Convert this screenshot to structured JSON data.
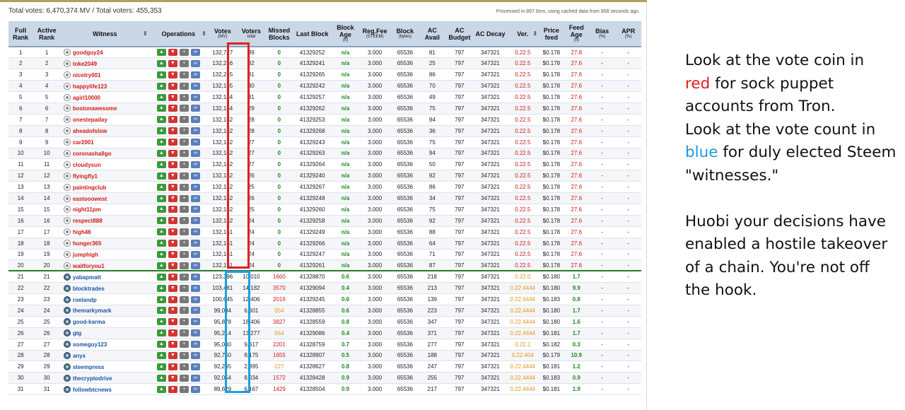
{
  "summary": "Total votes: 6,470,374 MV / Total voters: 455,353",
  "processed": "Processed in 897.6ms, using cached data from 858 seconds ago.",
  "headers": {
    "full_rank": "Full Rank",
    "active_rank": "Active Rank",
    "witness": "Witness",
    "operations": "Operations",
    "votes": "Votes",
    "votes_sub": "(MV)",
    "voters": "Voters",
    "voters_sub": "total",
    "missed": "Missed Blocks",
    "last_block": "Last Block",
    "block_age": "Block Age",
    "block_age_sub": "(h)",
    "reg_fee": "Reg.Fee",
    "reg_fee_sub": "(STEEM)",
    "block": "Block",
    "block_sub": "(bytes)",
    "ac_avail": "AC Avail",
    "ac_budget": "AC Budget",
    "ac_decay": "AC Decay",
    "ver": "Ver.",
    "price_feed": "Price feed",
    "feed_age": "Feed Age",
    "feed_age_sub": "(h)",
    "bias": "Bias",
    "bias_sub": "(%)",
    "apr": "APR",
    "apr_sub": "(%)"
  },
  "icons": {
    "upvote": "thumbs-up-icon",
    "downvote": "thumbs-down-icon",
    "proxy": "add-user-icon",
    "link": "link-icon",
    "sort": "sort-arrows-icon"
  },
  "colors": {
    "header_bg": "#c9d7e7",
    "sock_puppet": "#d11919",
    "elected": "#1a55a8",
    "red_box": "#e02020",
    "blue_box": "#1aa0e0",
    "note_red": "#e01b1b",
    "note_blue": "#1a9be0"
  },
  "rows": [
    {
      "full": "1",
      "active": "1",
      "witness": "goodguy24",
      "votes": "132,727",
      "voters": "39",
      "missed": "0",
      "last": "41329252",
      "age": "n/a",
      "fee": "3.000",
      "block": "65536",
      "avail": "81",
      "budget": "797",
      "decay": "347321",
      "ver": "0.22.5",
      "price": "$0.178",
      "feed_age": "27.8",
      "bias": "-",
      "apr": "-"
    },
    {
      "full": "2",
      "active": "2",
      "witness": "toke2049",
      "votes": "132,216",
      "voters": "32",
      "missed": "0",
      "last": "41329241",
      "age": "n/a",
      "fee": "3.000",
      "block": "65536",
      "avail": "25",
      "budget": "797",
      "decay": "347321",
      "ver": "0.22.5",
      "price": "$0.178",
      "feed_age": "27.6",
      "bias": "-",
      "apr": "-"
    },
    {
      "full": "3",
      "active": "3",
      "witness": "nicetry001",
      "votes": "132,215",
      "voters": "31",
      "missed": "0",
      "last": "41329265",
      "age": "n/a",
      "fee": "3.000",
      "block": "65536",
      "avail": "86",
      "budget": "797",
      "decay": "347321",
      "ver": "0.22.5",
      "price": "$0.178",
      "feed_age": "27.6",
      "bias": "-",
      "apr": "-"
    },
    {
      "full": "4",
      "active": "4",
      "witness": "happylife123",
      "votes": "132,155",
      "voters": "30",
      "missed": "0",
      "last": "41329242",
      "age": "n/a",
      "fee": "3.000",
      "block": "65536",
      "avail": "70",
      "budget": "797",
      "decay": "347321",
      "ver": "0.22.5",
      "price": "$0.178",
      "feed_age": "27.6",
      "bias": "-",
      "apr": "-"
    },
    {
      "full": "5",
      "active": "5",
      "witness": "agirl10000",
      "votes": "132,154",
      "voters": "31",
      "missed": "0",
      "last": "41329257",
      "age": "n/a",
      "fee": "3.000",
      "block": "65536",
      "avail": "49",
      "budget": "797",
      "decay": "347321",
      "ver": "0.22.5",
      "price": "$0.178",
      "feed_age": "27.6",
      "bias": "-",
      "apr": "-"
    },
    {
      "full": "6",
      "active": "6",
      "witness": "bostonawesome",
      "votes": "132,154",
      "voters": "29",
      "missed": "0",
      "last": "41329262",
      "age": "n/a",
      "fee": "3.000",
      "block": "65536",
      "avail": "75",
      "budget": "797",
      "decay": "347321",
      "ver": "0.22.5",
      "price": "$0.178",
      "feed_age": "27.6",
      "bias": "-",
      "apr": "-"
    },
    {
      "full": "7",
      "active": "7",
      "witness": "onestepaday",
      "votes": "132,152",
      "voters": "28",
      "missed": "0",
      "last": "41329253",
      "age": "n/a",
      "fee": "3.000",
      "block": "65536",
      "avail": "94",
      "budget": "797",
      "decay": "347321",
      "ver": "0.22.5",
      "price": "$0.178",
      "feed_age": "27.6",
      "bias": "-",
      "apr": "-"
    },
    {
      "full": "8",
      "active": "8",
      "witness": "aheadofslow",
      "votes": "132,152",
      "voters": "28",
      "missed": "0",
      "last": "41329268",
      "age": "n/a",
      "fee": "3.000",
      "block": "65536",
      "avail": "36",
      "budget": "797",
      "decay": "347321",
      "ver": "0.22.5",
      "price": "$0.178",
      "feed_age": "27.6",
      "bias": "-",
      "apr": "-"
    },
    {
      "full": "9",
      "active": "9",
      "witness": "car2001",
      "votes": "132,152",
      "voters": "27",
      "missed": "0",
      "last": "41329243",
      "age": "n/a",
      "fee": "3.000",
      "block": "65536",
      "avail": "75",
      "budget": "797",
      "decay": "347321",
      "ver": "0.22.5",
      "price": "$0.178",
      "feed_age": "27.6",
      "bias": "-",
      "apr": "-"
    },
    {
      "full": "10",
      "active": "10",
      "witness": "coronashallgo",
      "votes": "132,152",
      "voters": "27",
      "missed": "0",
      "last": "41329263",
      "age": "n/a",
      "fee": "3.000",
      "block": "65536",
      "avail": "94",
      "budget": "797",
      "decay": "347321",
      "ver": "0.22.5",
      "price": "$0.178",
      "feed_age": "27.6",
      "bias": "-",
      "apr": "-"
    },
    {
      "full": "11",
      "active": "11",
      "witness": "cloudysun",
      "votes": "132,152",
      "voters": "27",
      "missed": "0",
      "last": "41329264",
      "age": "n/a",
      "fee": "3.000",
      "block": "65536",
      "avail": "50",
      "budget": "797",
      "decay": "347321",
      "ver": "0.22.5",
      "price": "$0.178",
      "feed_age": "27.6",
      "bias": "-",
      "apr": "-"
    },
    {
      "full": "12",
      "active": "12",
      "witness": "flyingfly1",
      "votes": "132,152",
      "voters": "26",
      "missed": "0",
      "last": "41329240",
      "age": "n/a",
      "fee": "3.000",
      "block": "65536",
      "avail": "92",
      "budget": "797",
      "decay": "347321",
      "ver": "0.22.5",
      "price": "$0.178",
      "feed_age": "27.6",
      "bias": "-",
      "apr": "-"
    },
    {
      "full": "13",
      "active": "13",
      "witness": "paintingclub",
      "votes": "132,152",
      "voters": "25",
      "missed": "0",
      "last": "41329267",
      "age": "n/a",
      "fee": "3.000",
      "block": "65536",
      "avail": "86",
      "budget": "797",
      "decay": "347321",
      "ver": "0.22.5",
      "price": "$0.178",
      "feed_age": "27.6",
      "bias": "-",
      "apr": "-"
    },
    {
      "full": "14",
      "active": "14",
      "witness": "eastooowest",
      "votes": "132,152",
      "voters": "26",
      "missed": "0",
      "last": "41329248",
      "age": "n/a",
      "fee": "3.000",
      "block": "65536",
      "avail": "34",
      "budget": "797",
      "decay": "347321",
      "ver": "0.22.5",
      "price": "$0.178",
      "feed_age": "27.6",
      "bias": "-",
      "apr": "-"
    },
    {
      "full": "15",
      "active": "15",
      "witness": "night11pm",
      "votes": "132,152",
      "voters": "25",
      "missed": "0",
      "last": "41329260",
      "age": "n/a",
      "fee": "3.000",
      "block": "65536",
      "avail": "75",
      "budget": "797",
      "decay": "347321",
      "ver": "0.22.5",
      "price": "$0.178",
      "feed_age": "27.6",
      "bias": "-",
      "apr": "-"
    },
    {
      "full": "16",
      "active": "16",
      "witness": "respect888",
      "votes": "132,152",
      "voters": "24",
      "missed": "0",
      "last": "41329258",
      "age": "n/a",
      "fee": "3.000",
      "block": "65536",
      "avail": "92",
      "budget": "797",
      "decay": "347321",
      "ver": "0.22.5",
      "price": "$0.178",
      "feed_age": "27.6",
      "bias": "-",
      "apr": "-"
    },
    {
      "full": "17",
      "active": "17",
      "witness": "high46",
      "votes": "132,151",
      "voters": "24",
      "missed": "0",
      "last": "41329249",
      "age": "n/a",
      "fee": "3.000",
      "block": "65536",
      "avail": "88",
      "budget": "797",
      "decay": "347321",
      "ver": "0.22.5",
      "price": "$0.178",
      "feed_age": "27.6",
      "bias": "-",
      "apr": "-"
    },
    {
      "full": "18",
      "active": "18",
      "witness": "hunger365",
      "votes": "132,151",
      "voters": "24",
      "missed": "0",
      "last": "41329266",
      "age": "n/a",
      "fee": "3.000",
      "block": "65536",
      "avail": "64",
      "budget": "797",
      "decay": "347321",
      "ver": "0.22.5",
      "price": "$0.178",
      "feed_age": "27.6",
      "bias": "-",
      "apr": "-"
    },
    {
      "full": "19",
      "active": "19",
      "witness": "jumphigh",
      "votes": "132,151",
      "voters": "24",
      "missed": "0",
      "last": "41329247",
      "age": "n/a",
      "fee": "3.000",
      "block": "65536",
      "avail": "71",
      "budget": "797",
      "decay": "347321",
      "ver": "0.22.5",
      "price": "$0.178",
      "feed_age": "27.6",
      "bias": "-",
      "apr": "-"
    },
    {
      "full": "20",
      "active": "20",
      "witness": "waitforyou1",
      "votes": "132,151",
      "voters": "24",
      "missed": "0",
      "last": "41329261",
      "age": "n/a",
      "fee": "3.000",
      "block": "65536",
      "avail": "87",
      "budget": "797",
      "decay": "347321",
      "ver": "0.22.5",
      "price": "$0.178",
      "feed_age": "27.6",
      "bias": "-",
      "apr": "-"
    },
    {
      "full": "21",
      "active": "21",
      "witness": "yabapmatt",
      "votes": "123,396",
      "voters": "10,010",
      "missed": "1660",
      "last": "41328870",
      "age": "0.6",
      "fee": "3.000",
      "block": "65536",
      "avail": "218",
      "budget": "797",
      "decay": "347321",
      "ver": "0.22.0",
      "price": "$0.180",
      "feed_age": "1.7",
      "bias": "-",
      "apr": "-"
    },
    {
      "full": "22",
      "active": "22",
      "witness": "blocktrades",
      "votes": "103,461",
      "voters": "14,182",
      "missed": "3570",
      "last": "41329094",
      "age": "0.4",
      "fee": "3.000",
      "block": "65536",
      "avail": "213",
      "budget": "797",
      "decay": "347321",
      "ver": "0.22.4444",
      "price": "$0.180",
      "feed_age": "9.9",
      "bias": "-",
      "apr": "-"
    },
    {
      "full": "23",
      "active": "23",
      "witness": "roelandp",
      "votes": "100,645",
      "voters": "12,406",
      "missed": "2016",
      "last": "41329245",
      "age": "0.6",
      "fee": "3.000",
      "block": "65536",
      "avail": "139",
      "budget": "797",
      "decay": "347321",
      "ver": "0.22.4444",
      "price": "$0.183",
      "feed_age": "0.8",
      "bias": "-",
      "apr": "-"
    },
    {
      "full": "24",
      "active": "24",
      "witness": "themarkymark",
      "votes": "99,034",
      "voters": "6,601",
      "missed": "554",
      "last": "41328855",
      "age": "0.6",
      "fee": "3.000",
      "block": "65536",
      "avail": "223",
      "budget": "797",
      "decay": "347321",
      "ver": "0.22.4444",
      "price": "$0.180",
      "feed_age": "1.7",
      "bias": "-",
      "apr": "-"
    },
    {
      "full": "25",
      "active": "25",
      "witness": "good-karma",
      "votes": "95,878",
      "voters": "18,406",
      "missed": "3827",
      "last": "41328559",
      "age": "0.8",
      "fee": "3.000",
      "block": "65536",
      "avail": "347",
      "budget": "797",
      "decay": "347321",
      "ver": "0.22.4444",
      "price": "$0.180",
      "feed_age": "1.6",
      "bias": "-",
      "apr": "-"
    },
    {
      "full": "26",
      "active": "26",
      "witness": "gtg",
      "votes": "95,214",
      "voters": "13,277",
      "missed": "564",
      "last": "41329086",
      "age": "0.4",
      "fee": "3.000",
      "block": "65536",
      "avail": "371",
      "budget": "797",
      "decay": "347321",
      "ver": "0.22.4444",
      "price": "$0.181",
      "feed_age": "1.7",
      "bias": "-",
      "apr": "-"
    },
    {
      "full": "27",
      "active": "27",
      "witness": "someguy123",
      "votes": "95,040",
      "voters": "9,617",
      "missed": "2201",
      "last": "41328759",
      "age": "0.7",
      "fee": "3.000",
      "block": "65536",
      "avail": "277",
      "budget": "797",
      "decay": "347321",
      "ver": "0.22.1",
      "price": "$0.182",
      "feed_age": "0.3",
      "bias": "-",
      "apr": "-"
    },
    {
      "full": "28",
      "active": "28",
      "witness": "anyx",
      "votes": "92,750",
      "voters": "8,175",
      "missed": "1655",
      "last": "41328907",
      "age": "0.5",
      "fee": "3.000",
      "block": "65536",
      "avail": "188",
      "budget": "797",
      "decay": "347321",
      "ver": "0.22.404",
      "price": "$0.179",
      "feed_age": "10.9",
      "bias": "-",
      "apr": "-"
    },
    {
      "full": "29",
      "active": "29",
      "witness": "steempress",
      "votes": "92,265",
      "voters": "2,395",
      "missed": "227",
      "last": "41328627",
      "age": "0.8",
      "fee": "3.000",
      "block": "65536",
      "avail": "247",
      "budget": "797",
      "decay": "347321",
      "ver": "0.22.4444",
      "price": "$0.181",
      "feed_age": "1.2",
      "bias": "-",
      "apr": "-"
    },
    {
      "full": "30",
      "active": "30",
      "witness": "thecryptodrive",
      "votes": "92,054",
      "voters": "8,034",
      "missed": "1572",
      "last": "41328428",
      "age": "0.9",
      "fee": "3.000",
      "block": "65536",
      "avail": "255",
      "budget": "797",
      "decay": "347321",
      "ver": "0.22.4444",
      "price": "$0.183",
      "feed_age": "0.9",
      "bias": "-",
      "apr": "-"
    },
    {
      "full": "31",
      "active": "31",
      "witness": "followbtcnews",
      "votes": "89,629",
      "voters": "6,167",
      "missed": "1429",
      "last": "41328504",
      "age": "0.9",
      "fee": "3.000",
      "block": "65536",
      "avail": "217",
      "budget": "797",
      "decay": "347321",
      "ver": "0.22.4444",
      "price": "$0.181",
      "feed_age": "1.9",
      "bias": "-",
      "apr": "-"
    }
  ],
  "note": {
    "p1_a": "Look at the vote coin in",
    "p1_red": "red",
    "p1_b": " for sock puppet accounts from Tron.",
    "p2_a": "Look at the vote count in",
    "p2_blue": "blue",
    "p2_b": " for duly elected Steem \"witnesses.\"",
    "p3": "Huobi your decisions have enabled a hostile takeover of a chain. You're not off the hook."
  }
}
